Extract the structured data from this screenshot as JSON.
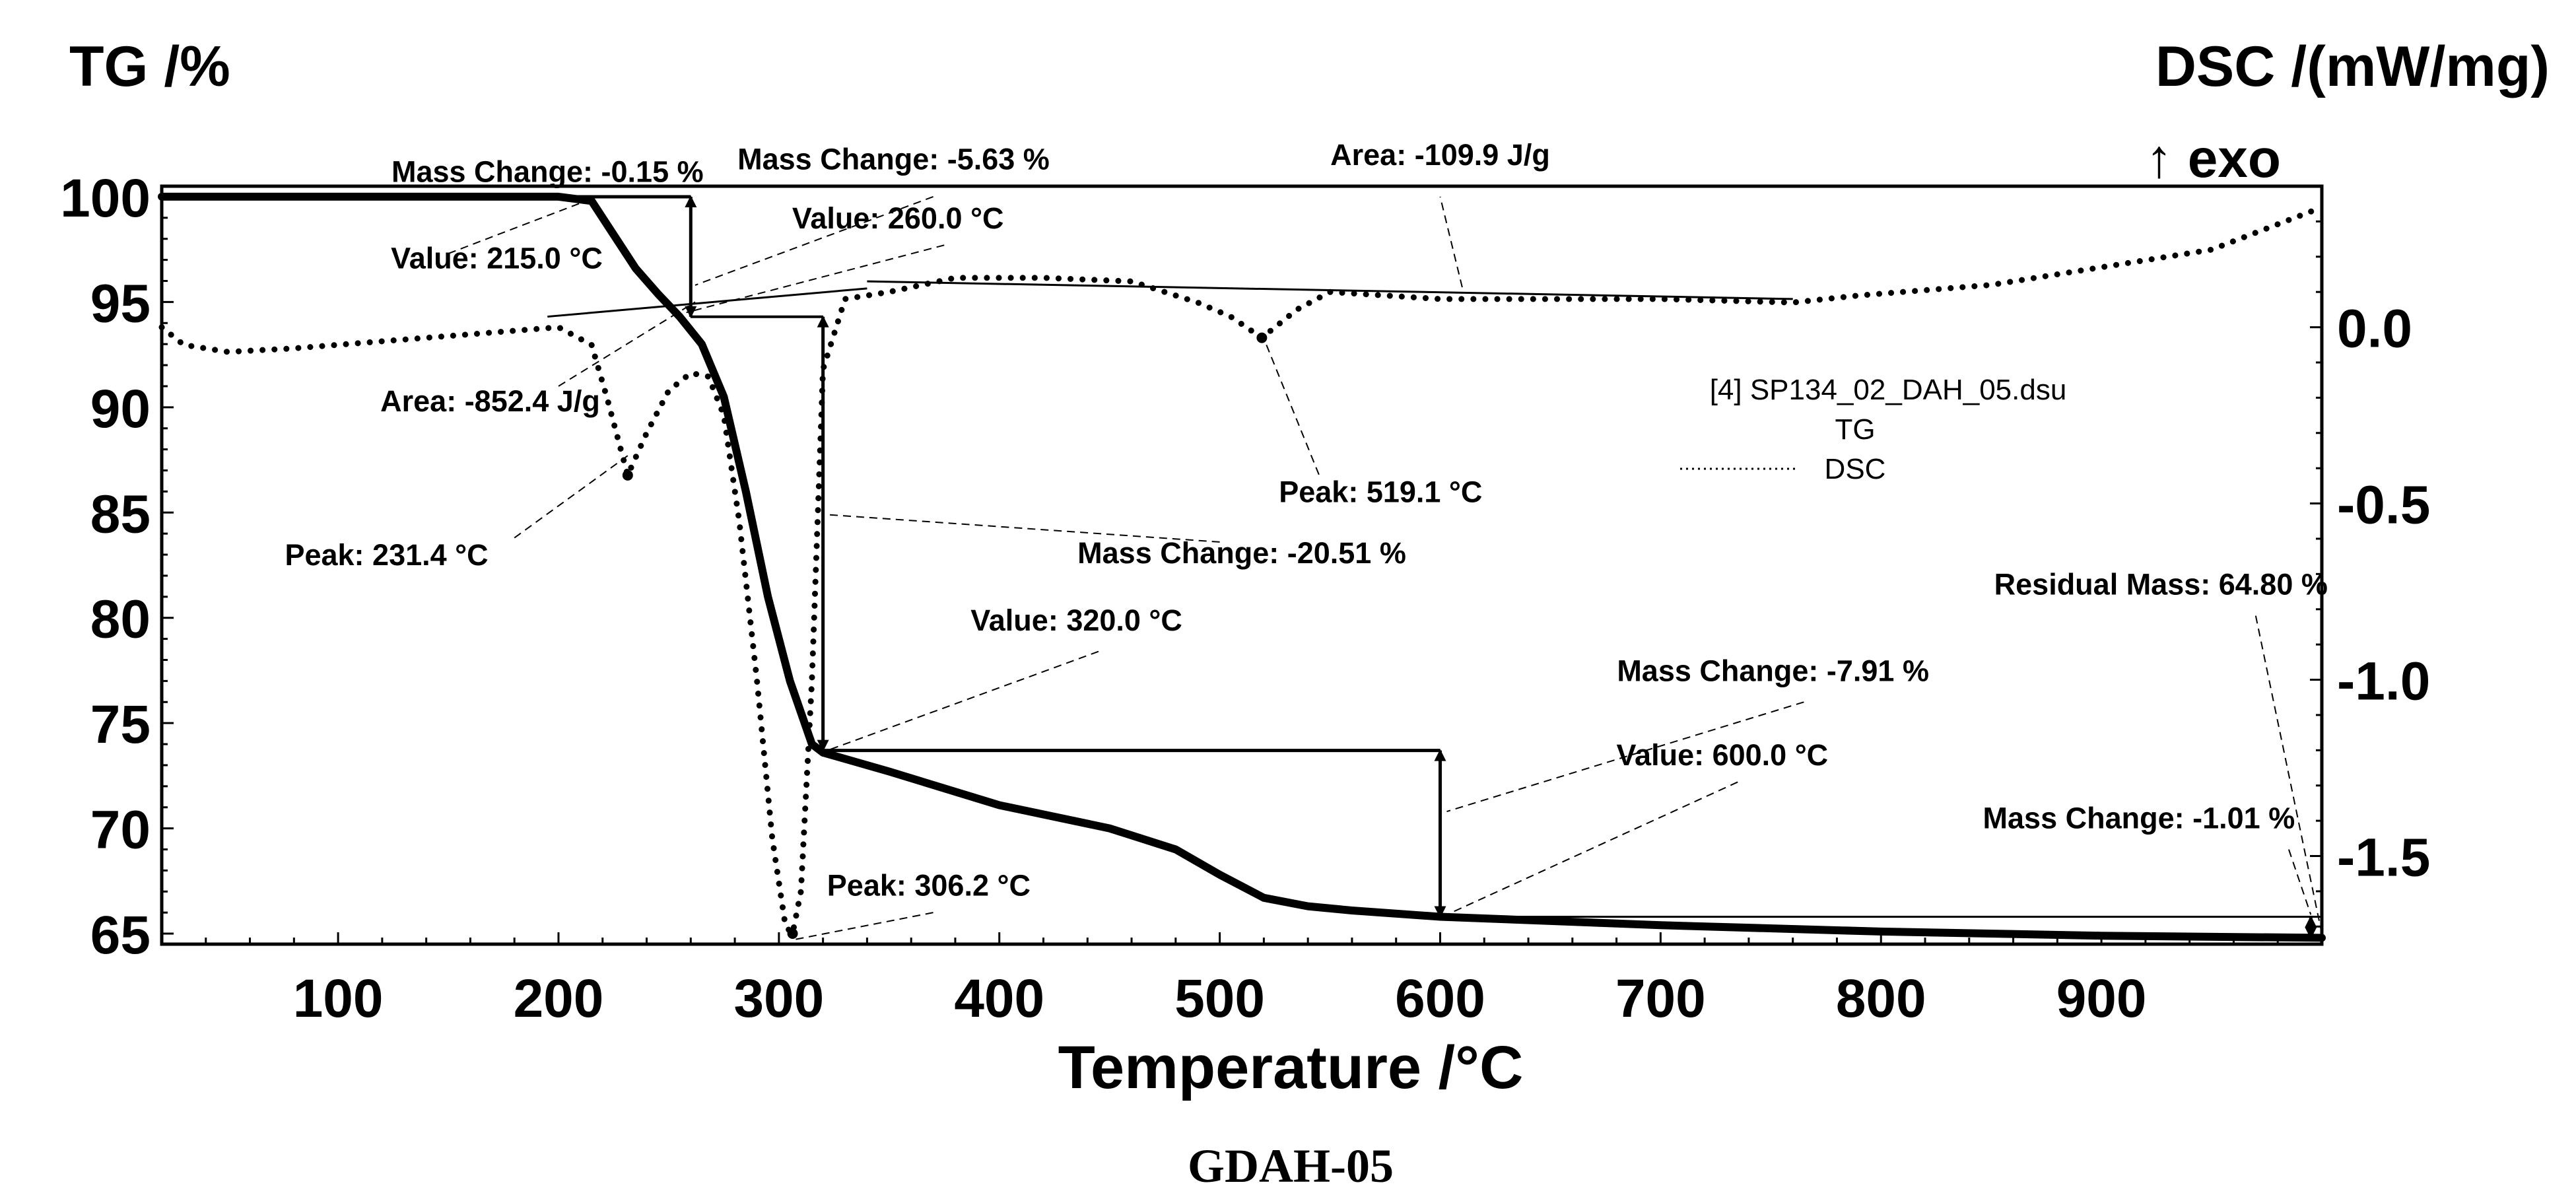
{
  "chart_data": {
    "type": "line",
    "title": "GDAH-05",
    "xlabel": "Temperature /°C",
    "ylabel_left": "TG /%",
    "ylabel_right": "DSC /(mW/mg)",
    "right_axis_note": "↑ exo",
    "xlim": [
      20,
      1000
    ],
    "ylim_left": [
      64.5,
      100.5
    ],
    "ylim_right": [
      -1.75,
      0.4
    ],
    "x_ticks": [
      "100",
      "200",
      "300",
      "400",
      "500",
      "600",
      "700",
      "800",
      "900"
    ],
    "y_left_ticks": [
      "100",
      "95",
      "90",
      "85",
      "80",
      "75",
      "70",
      "65"
    ],
    "y_right_ticks": [
      "0.0",
      "-0.5",
      "-1.0",
      "-1.5"
    ],
    "legend": {
      "file": "[4] SP134_02_DAH_05.dsu",
      "entries": [
        "TG",
        "DSC"
      ]
    },
    "series": [
      {
        "name": "TG",
        "axis": "left",
        "style": "solid",
        "x": [
          20,
          100,
          200,
          215,
          225,
          235,
          245,
          255,
          265,
          275,
          285,
          295,
          305,
          315,
          320,
          330,
          350,
          400,
          450,
          480,
          500,
          520,
          540,
          560,
          600,
          700,
          800,
          900,
          1000
        ],
        "y": [
          100,
          100,
          100,
          99.8,
          98.2,
          96.6,
          95.4,
          94.3,
          93.0,
          90.5,
          86.0,
          81.0,
          77.0,
          74.0,
          73.6,
          73.3,
          72.7,
          71.1,
          70.0,
          69.0,
          67.8,
          66.7,
          66.3,
          66.1,
          65.8,
          65.4,
          65.1,
          64.9,
          64.8
        ]
      },
      {
        "name": "DSC",
        "axis": "right",
        "style": "dotted",
        "x": [
          20,
          30,
          50,
          80,
          120,
          160,
          200,
          215,
          222,
          231.4,
          240,
          250,
          260,
          268,
          275,
          282,
          290,
          297,
          303,
          306.2,
          310,
          315,
          320,
          330,
          350,
          380,
          420,
          460,
          490,
          505,
          519.1,
          535,
          550,
          600,
          700,
          760,
          790,
          850,
          900,
          950,
          1000
        ],
        "y": [
          0.0,
          -0.05,
          -0.07,
          -0.06,
          -0.04,
          -0.02,
          0.0,
          -0.05,
          -0.2,
          -0.42,
          -0.3,
          -0.18,
          -0.13,
          -0.14,
          -0.25,
          -0.55,
          -1.0,
          -1.45,
          -1.7,
          -1.72,
          -1.6,
          -1.0,
          -0.12,
          0.08,
          0.1,
          0.14,
          0.14,
          0.13,
          0.07,
          0.03,
          -0.03,
          0.05,
          0.1,
          0.08,
          0.08,
          0.07,
          0.09,
          0.12,
          0.17,
          0.22,
          0.34
        ]
      }
    ],
    "annotations": [
      {
        "text": "Mass Change: -0.15 %",
        "x": 195,
        "y": 100.7,
        "axis": "left"
      },
      {
        "text": "Value: 215.0 °C",
        "x": 172,
        "y": 96.6,
        "axis": "left"
      },
      {
        "text": "Mass Change: -5.63 %",
        "x": 352,
        "y": 101.3,
        "axis": "left"
      },
      {
        "text": "Value: 260.0 °C",
        "x": 354,
        "y": 98.5,
        "axis": "left"
      },
      {
        "text": "Area: -852.4 J/g",
        "x": 169,
        "y": 89.8,
        "axis": "left"
      },
      {
        "text": "Peak: 231.4 °C",
        "x": 122,
        "y": 82.5,
        "axis": "left"
      },
      {
        "text": "Area: -109.9 J/g",
        "x": 600,
        "y": 101.5,
        "axis": "left"
      },
      {
        "text": "Peak: 519.1 °C",
        "x": 573,
        "y": 85.5,
        "axis": "left"
      },
      {
        "text": "Mass Change: -20.51 %",
        "x": 510,
        "y": 82.6,
        "axis": "left"
      },
      {
        "text": "Value: 320.0 °C",
        "x": 435,
        "y": 79.4,
        "axis": "left"
      },
      {
        "text": "Mass Change: -7.91 %",
        "x": 751,
        "y": 77.0,
        "axis": "left"
      },
      {
        "text": "Value: 600.0 °C",
        "x": 728,
        "y": 73.0,
        "axis": "left"
      },
      {
        "text": "Peak: 306.2 °C",
        "x": 368,
        "y": 66.8,
        "axis": "left"
      },
      {
        "text": "Residual Mass: 64.80 %",
        "x": 927,
        "y": 81.1,
        "axis": "left"
      },
      {
        "text": "Mass Change: -1.01 %",
        "x": 917,
        "y": 70.0,
        "axis": "left"
      }
    ]
  }
}
